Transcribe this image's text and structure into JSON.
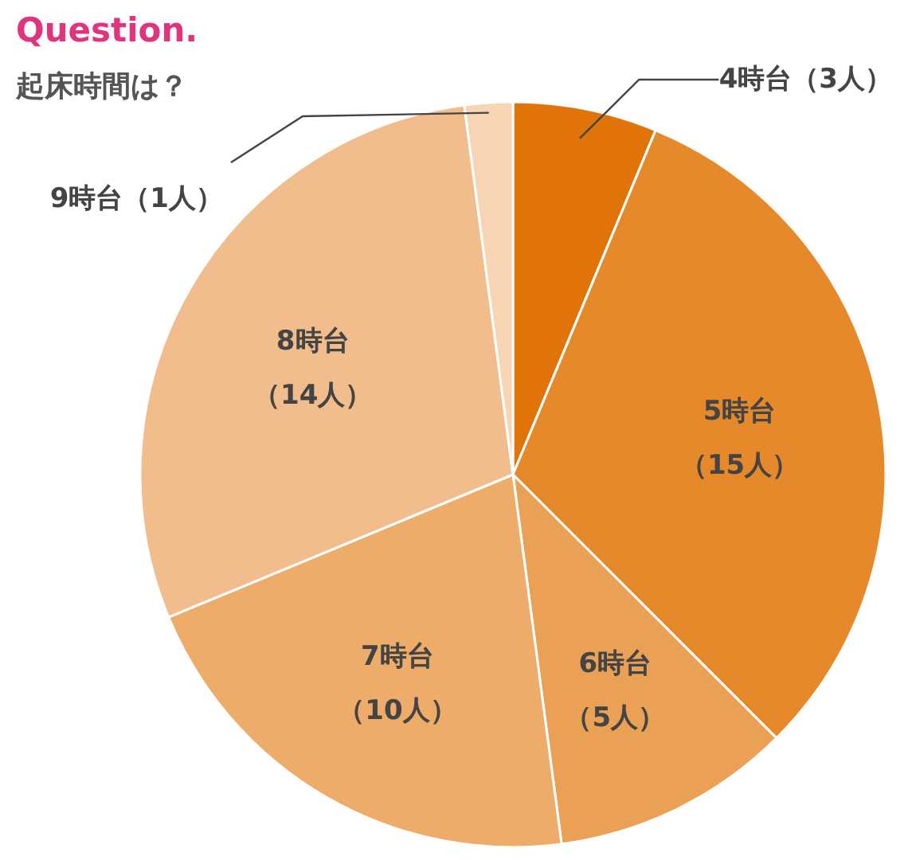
{
  "chart_data": {
    "type": "pie",
    "title": "Question.",
    "subtitle": "起床時間は？",
    "categories": [
      "4時台",
      "5時台",
      "6時台",
      "7時台",
      "8時台",
      "9時台"
    ],
    "values": [
      3,
      15,
      5,
      10,
      14,
      1
    ],
    "value_labels": [
      "（3人）",
      "（15人）",
      "（5人）",
      "（10人）",
      "（14人）",
      "（1人）"
    ],
    "colors": [
      "#e07408",
      "#e5892a",
      "#eaa055",
      "#edac6a",
      "#f1bd8c",
      "#f7d4b3"
    ]
  }
}
